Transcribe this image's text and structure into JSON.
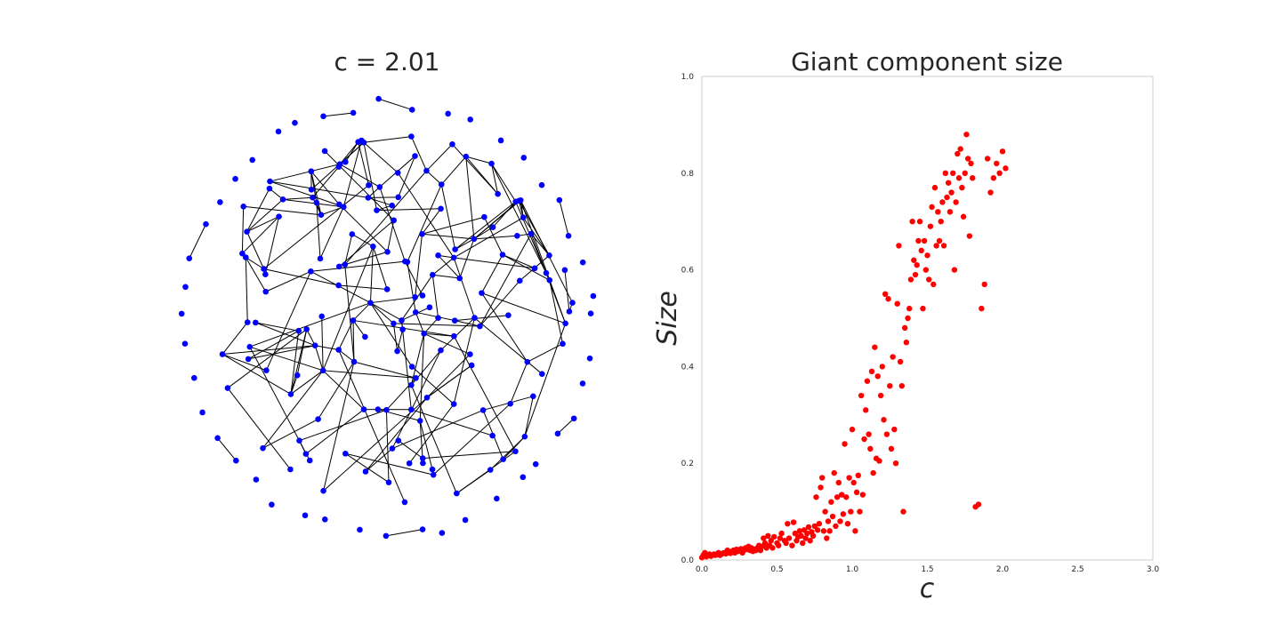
{
  "network_title": "c = 2.01",
  "chart_data": [
    {
      "type": "network",
      "title": "c = 2.01",
      "node_color": "#0000ff",
      "edge_color": "#000000",
      "node_count": 200
    },
    {
      "type": "scatter",
      "title": "Giant component size",
      "xlabel": "c",
      "ylabel": "Size",
      "xlim": [
        0.0,
        3.0
      ],
      "ylim": [
        0.0,
        1.0
      ],
      "xticks": [
        "0.0",
        "0.5",
        "1.0",
        "1.5",
        "2.0",
        "2.5",
        "3.0"
      ],
      "yticks": [
        "0.0",
        "0.2",
        "0.4",
        "0.6",
        "0.8",
        "1.0"
      ],
      "grid": false,
      "color": "#ff0000",
      "points": [
        [
          0.0,
          0.005
        ],
        [
          0.01,
          0.01
        ],
        [
          0.02,
          0.015
        ],
        [
          0.03,
          0.007
        ],
        [
          0.04,
          0.01
        ],
        [
          0.05,
          0.012
        ],
        [
          0.06,
          0.008
        ],
        [
          0.07,
          0.01
        ],
        [
          0.08,
          0.012
        ],
        [
          0.09,
          0.01
        ],
        [
          0.1,
          0.012
        ],
        [
          0.11,
          0.015
        ],
        [
          0.12,
          0.01
        ],
        [
          0.13,
          0.012
        ],
        [
          0.14,
          0.014
        ],
        [
          0.15,
          0.015
        ],
        [
          0.16,
          0.013
        ],
        [
          0.17,
          0.02
        ],
        [
          0.18,
          0.017
        ],
        [
          0.19,
          0.014
        ],
        [
          0.2,
          0.018
        ],
        [
          0.21,
          0.02
        ],
        [
          0.22,
          0.015
        ],
        [
          0.23,
          0.022
        ],
        [
          0.24,
          0.018
        ],
        [
          0.25,
          0.021
        ],
        [
          0.26,
          0.023
        ],
        [
          0.27,
          0.015
        ],
        [
          0.28,
          0.02
        ],
        [
          0.29,
          0.025
        ],
        [
          0.3,
          0.022
        ],
        [
          0.31,
          0.028
        ],
        [
          0.32,
          0.02
        ],
        [
          0.33,
          0.025
        ],
        [
          0.34,
          0.018
        ],
        [
          0.35,
          0.022
        ],
        [
          0.36,
          0.02
        ],
        [
          0.37,
          0.025
        ],
        [
          0.38,
          0.03
        ],
        [
          0.39,
          0.02
        ],
        [
          0.4,
          0.028
        ],
        [
          0.41,
          0.045
        ],
        [
          0.42,
          0.035
        ],
        [
          0.43,
          0.025
        ],
        [
          0.44,
          0.05
        ],
        [
          0.45,
          0.03
        ],
        [
          0.46,
          0.04
        ],
        [
          0.47,
          0.025
        ],
        [
          0.48,
          0.048
        ],
        [
          0.5,
          0.035
        ],
        [
          0.51,
          0.03
        ],
        [
          0.52,
          0.045
        ],
        [
          0.53,
          0.055
        ],
        [
          0.55,
          0.04
        ],
        [
          0.56,
          0.035
        ],
        [
          0.57,
          0.075
        ],
        [
          0.58,
          0.045
        ],
        [
          0.6,
          0.03
        ],
        [
          0.61,
          0.078
        ],
        [
          0.62,
          0.055
        ],
        [
          0.63,
          0.04
        ],
        [
          0.64,
          0.048
        ],
        [
          0.65,
          0.06
        ],
        [
          0.66,
          0.05
        ],
        [
          0.67,
          0.035
        ],
        [
          0.68,
          0.062
        ],
        [
          0.69,
          0.045
        ],
        [
          0.7,
          0.055
        ],
        [
          0.71,
          0.068
        ],
        [
          0.72,
          0.04
        ],
        [
          0.73,
          0.058
        ],
        [
          0.74,
          0.05
        ],
        [
          0.75,
          0.07
        ],
        [
          0.76,
          0.13
        ],
        [
          0.77,
          0.062
        ],
        [
          0.78,
          0.075
        ],
        [
          0.79,
          0.15
        ],
        [
          0.8,
          0.17
        ],
        [
          0.81,
          0.06
        ],
        [
          0.82,
          0.1
        ],
        [
          0.83,
          0.045
        ],
        [
          0.84,
          0.08
        ],
        [
          0.85,
          0.06
        ],
        [
          0.86,
          0.12
        ],
        [
          0.87,
          0.09
        ],
        [
          0.88,
          0.18
        ],
        [
          0.89,
          0.07
        ],
        [
          0.9,
          0.13
        ],
        [
          0.91,
          0.16
        ],
        [
          0.92,
          0.08
        ],
        [
          0.93,
          0.135
        ],
        [
          0.94,
          0.095
        ],
        [
          0.95,
          0.24
        ],
        [
          0.96,
          0.13
        ],
        [
          0.97,
          0.075
        ],
        [
          0.98,
          0.17
        ],
        [
          0.99,
          0.1
        ],
        [
          1.0,
          0.27
        ],
        [
          1.01,
          0.16
        ],
        [
          1.02,
          0.06
        ],
        [
          1.03,
          0.14
        ],
        [
          1.04,
          0.175
        ],
        [
          1.05,
          0.1
        ],
        [
          1.06,
          0.34
        ],
        [
          1.07,
          0.135
        ],
        [
          1.08,
          0.25
        ],
        [
          1.09,
          0.31
        ],
        [
          1.1,
          0.37
        ],
        [
          1.11,
          0.26
        ],
        [
          1.12,
          0.23
        ],
        [
          1.13,
          0.39
        ],
        [
          1.14,
          0.18
        ],
        [
          1.15,
          0.44
        ],
        [
          1.16,
          0.21
        ],
        [
          1.17,
          0.38
        ],
        [
          1.18,
          0.205
        ],
        [
          1.19,
          0.34
        ],
        [
          1.2,
          0.4
        ],
        [
          1.21,
          0.29
        ],
        [
          1.22,
          0.55
        ],
        [
          1.23,
          0.26
        ],
        [
          1.24,
          0.54
        ],
        [
          1.25,
          0.36
        ],
        [
          1.26,
          0.23
        ],
        [
          1.27,
          0.42
        ],
        [
          1.28,
          0.27
        ],
        [
          1.29,
          0.2
        ],
        [
          1.3,
          0.53
        ],
        [
          1.31,
          0.65
        ],
        [
          1.32,
          0.41
        ],
        [
          1.33,
          0.36
        ],
        [
          1.34,
          0.1
        ],
        [
          1.35,
          0.48
        ],
        [
          1.36,
          0.45
        ],
        [
          1.37,
          0.5
        ],
        [
          1.38,
          0.52
        ],
        [
          1.39,
          0.58
        ],
        [
          1.4,
          0.7
        ],
        [
          1.41,
          0.62
        ],
        [
          1.42,
          0.59
        ],
        [
          1.43,
          0.61
        ],
        [
          1.44,
          0.66
        ],
        [
          1.45,
          0.7
        ],
        [
          1.46,
          0.64
        ],
        [
          1.47,
          0.52
        ],
        [
          1.48,
          0.66
        ],
        [
          1.49,
          0.6
        ],
        [
          1.5,
          0.63
        ],
        [
          1.51,
          0.58
        ],
        [
          1.52,
          0.69
        ],
        [
          1.53,
          0.73
        ],
        [
          1.54,
          0.57
        ],
        [
          1.55,
          0.77
        ],
        [
          1.56,
          0.65
        ],
        [
          1.57,
          0.72
        ],
        [
          1.58,
          0.66
        ],
        [
          1.59,
          0.7
        ],
        [
          1.6,
          0.74
        ],
        [
          1.61,
          0.65
        ],
        [
          1.62,
          0.8
        ],
        [
          1.63,
          0.75
        ],
        [
          1.64,
          0.78
        ],
        [
          1.65,
          0.72
        ],
        [
          1.66,
          0.76
        ],
        [
          1.67,
          0.8
        ],
        [
          1.68,
          0.6
        ],
        [
          1.69,
          0.74
        ],
        [
          1.7,
          0.84
        ],
        [
          1.71,
          0.79
        ],
        [
          1.72,
          0.85
        ],
        [
          1.73,
          0.77
        ],
        [
          1.74,
          0.71
        ],
        [
          1.75,
          0.8
        ],
        [
          1.76,
          0.88
        ],
        [
          1.77,
          0.83
        ],
        [
          1.78,
          0.67
        ],
        [
          1.79,
          0.82
        ],
        [
          1.8,
          0.79
        ],
        [
          1.82,
          0.11
        ],
        [
          1.84,
          0.115
        ],
        [
          1.86,
          0.52
        ],
        [
          1.88,
          0.57
        ],
        [
          1.9,
          0.83
        ],
        [
          1.92,
          0.76
        ],
        [
          1.94,
          0.79
        ],
        [
          1.96,
          0.82
        ],
        [
          1.98,
          0.8
        ],
        [
          2.0,
          0.845
        ],
        [
          2.02,
          0.81
        ]
      ]
    }
  ]
}
